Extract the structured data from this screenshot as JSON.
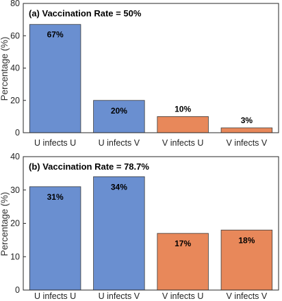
{
  "chart_data": [
    {
      "type": "bar",
      "title": "(a) Vaccination Rate = 50%",
      "ylabel": "Percentage (%)",
      "xlabel": "",
      "ylim": [
        0,
        80
      ],
      "yticks": [
        0,
        20,
        40,
        60,
        80
      ],
      "grid": false,
      "categories": [
        "U infects U",
        "U infects V",
        "V infects U",
        "V infects V"
      ],
      "values": [
        67,
        20,
        10,
        3
      ],
      "data_labels": [
        "67%",
        "20%",
        "10%",
        "3%"
      ],
      "bar_colors": [
        "#6a8fd0",
        "#6a8fd0",
        "#e8885a",
        "#e8885a"
      ]
    },
    {
      "type": "bar",
      "title": "(b) Vaccination Rate = 78.7%",
      "ylabel": "Percentage (%)",
      "xlabel": "",
      "ylim": [
        0,
        40
      ],
      "yticks": [
        0,
        10,
        20,
        30,
        40
      ],
      "grid": false,
      "categories": [
        "U infects U",
        "U infects V",
        "V infects U",
        "V infects V"
      ],
      "values": [
        31,
        34,
        17,
        18
      ],
      "data_labels": [
        "31%",
        "34%",
        "17%",
        "18%"
      ],
      "bar_colors": [
        "#6a8fd0",
        "#6a8fd0",
        "#e8885a",
        "#e8885a"
      ]
    }
  ]
}
